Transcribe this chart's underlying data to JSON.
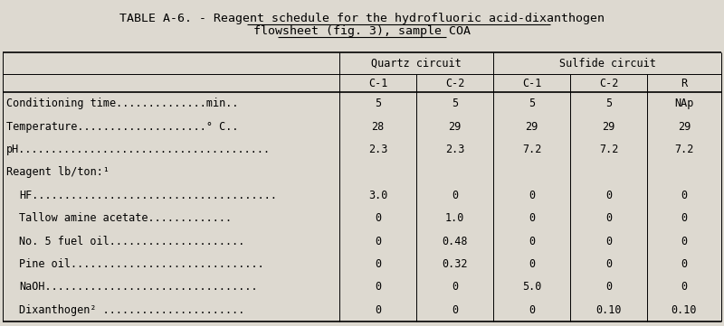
{
  "title_line1": "TABLE A-6. - Reagent schedule for the hydrofluoric acid-dixanthogen",
  "title_line1_prefix": "TABLE A-6. - ",
  "title_line1_underlined": "Reagent schedule for the hydrofluoric acid-dixanthogen",
  "title_line2": "flowsheet (fig. 3), sample COA",
  "bg_color": "#ddd9d0",
  "header_row1_quartz": "Quartz circuit",
  "header_row1_sulfide": "Sulfide circuit",
  "header_row2": [
    "C-1",
    "C-2",
    "C-1",
    "C-2",
    "R"
  ],
  "rows": [
    [
      "Conditioning time..............min..",
      "5",
      "5",
      "5",
      "5",
      "NAp"
    ],
    [
      "Temperature....................° C..",
      "28",
      "29",
      "29",
      "29",
      "29"
    ],
    [
      "pH.......................................",
      "2.3",
      "2.3",
      "7.2",
      "7.2",
      "7.2"
    ],
    [
      "Reagent lb/ton:¹",
      "",
      "",
      "",
      "",
      ""
    ],
    [
      "  HF......................................",
      "3.0",
      "0",
      "0",
      "0",
      "0"
    ],
    [
      "  Tallow amine acetate.............",
      "0",
      "1.0",
      "0",
      "0",
      "0"
    ],
    [
      "  No. 5 fuel oil.....................",
      "0",
      "0.48",
      "0",
      "0",
      "0"
    ],
    [
      "  Pine oil..............................",
      "0",
      "0.32",
      "0",
      "0",
      "0"
    ],
    [
      "  NaOH.................................",
      "0",
      "0",
      "5.0",
      "0",
      "0"
    ],
    [
      "  Dixanthogen² ......................",
      "0",
      "0",
      "0",
      "0.10",
      "0.10"
    ]
  ],
  "font_size": 8.5,
  "title_font_size": 9.5
}
